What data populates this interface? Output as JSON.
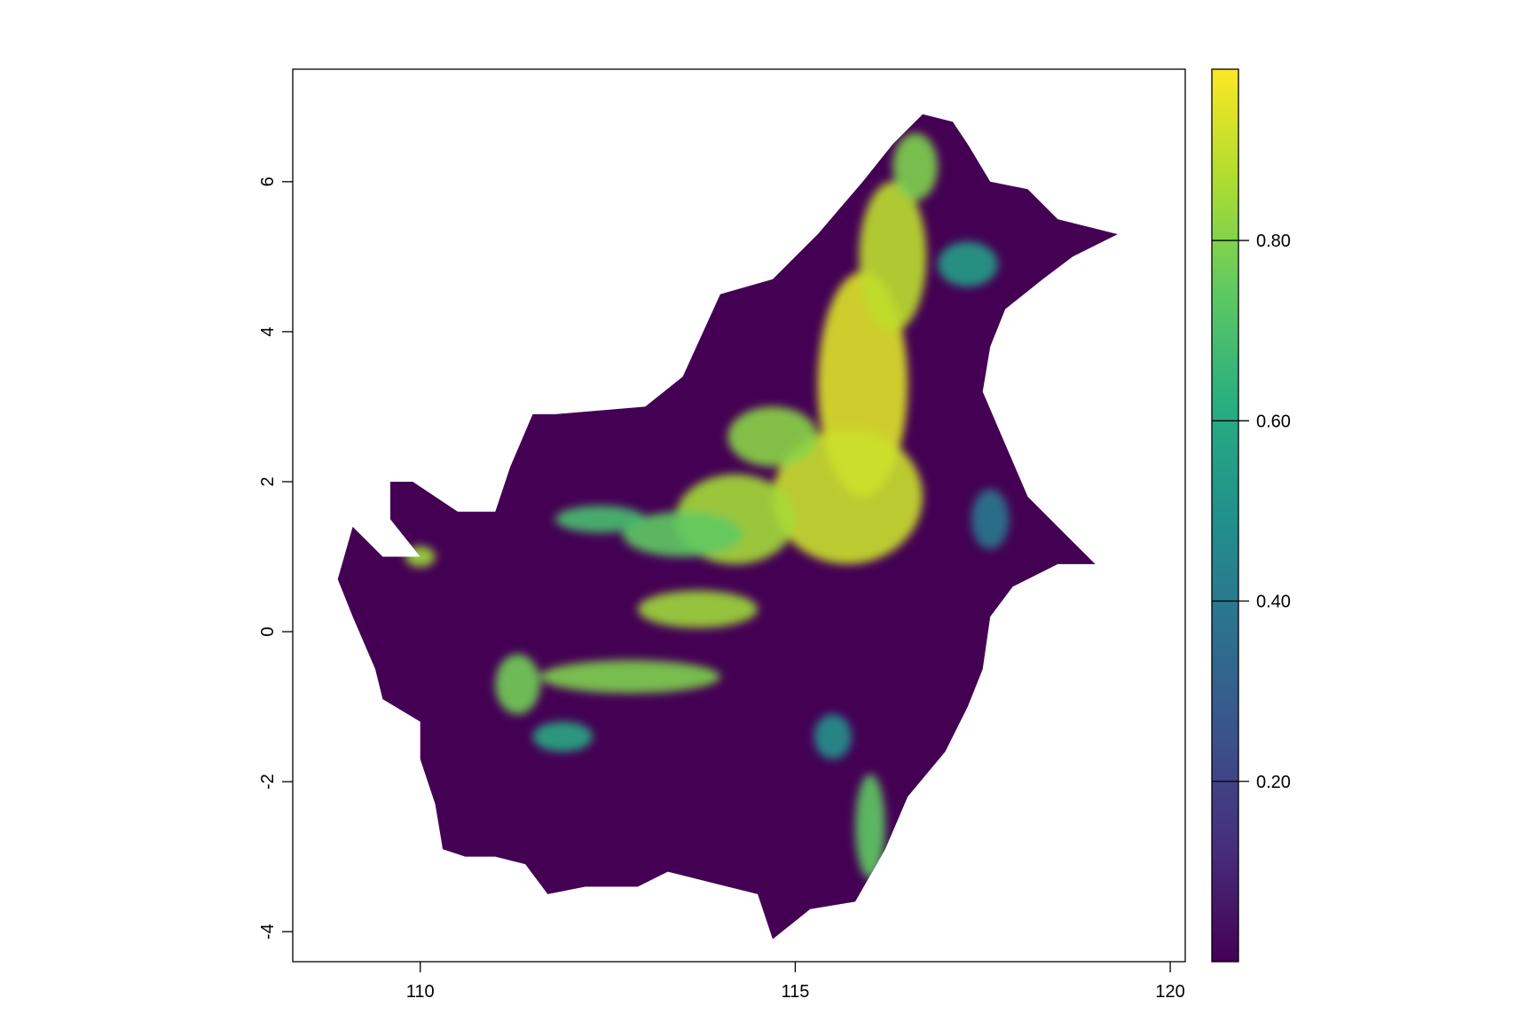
{
  "chart_data": {
    "type": "heatmap",
    "title": "",
    "xlabel": "",
    "ylabel": "",
    "xlim": [
      108.3,
      120.2
    ],
    "ylim": [
      -4.4,
      7.5
    ],
    "x_ticks": [
      {
        "value": 110,
        "label": "110"
      },
      {
        "value": 115,
        "label": "115"
      },
      {
        "value": 120,
        "label": "120"
      }
    ],
    "y_ticks": [
      {
        "value": -4,
        "label": "-4"
      },
      {
        "value": -2,
        "label": "-2"
      },
      {
        "value": 0,
        "label": "0"
      },
      {
        "value": 2,
        "label": "2"
      },
      {
        "value": 4,
        "label": "4"
      },
      {
        "value": 6,
        "label": "6"
      }
    ],
    "colorbar": {
      "min": 0,
      "max": 0.99,
      "ticks": [
        {
          "value": 0.2,
          "label": "0.20"
        },
        {
          "value": 0.4,
          "label": "0.40"
        },
        {
          "value": 0.6,
          "label": "0.60"
        },
        {
          "value": 0.8,
          "label": "0.80"
        }
      ],
      "palette": [
        "#440154",
        "#472d7b",
        "#3b528b",
        "#2c728e",
        "#21918c",
        "#28ae80",
        "#5ec962",
        "#addc30",
        "#fde725"
      ]
    },
    "island_outline": [
      [
        110.0,
        1.0
      ],
      [
        109.6,
        1.5
      ],
      [
        109.6,
        2.0
      ],
      [
        109.9,
        2.0
      ],
      [
        110.5,
        1.6
      ],
      [
        111.0,
        1.6
      ],
      [
        111.2,
        2.2
      ],
      [
        111.5,
        2.9
      ],
      [
        111.8,
        2.9
      ],
      [
        113.0,
        3.0
      ],
      [
        113.5,
        3.4
      ],
      [
        114.0,
        4.5
      ],
      [
        114.7,
        4.7
      ],
      [
        115.3,
        5.3
      ],
      [
        115.9,
        6.0
      ],
      [
        116.3,
        6.5
      ],
      [
        116.7,
        6.9
      ],
      [
        117.1,
        6.8
      ],
      [
        117.3,
        6.5
      ],
      [
        117.6,
        6.0
      ],
      [
        118.1,
        5.9
      ],
      [
        118.5,
        5.5
      ],
      [
        119.3,
        5.3
      ],
      [
        118.7,
        5.0
      ],
      [
        118.3,
        4.7
      ],
      [
        117.8,
        4.3
      ],
      [
        117.6,
        3.8
      ],
      [
        117.5,
        3.2
      ],
      [
        117.8,
        2.5
      ],
      [
        118.1,
        1.8
      ],
      [
        118.7,
        1.2
      ],
      [
        119.0,
        0.9
      ],
      [
        118.5,
        0.9
      ],
      [
        117.9,
        0.6
      ],
      [
        117.6,
        0.2
      ],
      [
        117.5,
        -0.5
      ],
      [
        117.3,
        -1.0
      ],
      [
        117.0,
        -1.6
      ],
      [
        116.5,
        -2.2
      ],
      [
        116.2,
        -2.9
      ],
      [
        115.8,
        -3.6
      ],
      [
        115.2,
        -3.7
      ],
      [
        114.7,
        -4.1
      ],
      [
        114.5,
        -3.5
      ],
      [
        114.1,
        -3.4
      ],
      [
        113.3,
        -3.2
      ],
      [
        112.9,
        -3.4
      ],
      [
        112.2,
        -3.4
      ],
      [
        111.7,
        -3.5
      ],
      [
        111.4,
        -3.1
      ],
      [
        111.0,
        -3.0
      ],
      [
        110.6,
        -3.0
      ],
      [
        110.3,
        -2.9
      ],
      [
        110.2,
        -2.3
      ],
      [
        110.0,
        -1.7
      ],
      [
        110.0,
        -1.2
      ],
      [
        109.5,
        -0.9
      ],
      [
        109.4,
        -0.5
      ],
      [
        109.1,
        0.2
      ],
      [
        108.9,
        0.7
      ],
      [
        109.1,
        1.4
      ],
      [
        109.5,
        1.0
      ]
    ],
    "suitability_zones": [
      {
        "lon": 115.9,
        "lat": 3.3,
        "rx": 0.6,
        "ry": 1.5,
        "value": 0.95
      },
      {
        "lon": 116.3,
        "lat": 5.0,
        "rx": 0.45,
        "ry": 1.0,
        "value": 0.9
      },
      {
        "lon": 116.6,
        "lat": 6.2,
        "rx": 0.3,
        "ry": 0.45,
        "value": 0.8
      },
      {
        "lon": 115.7,
        "lat": 1.8,
        "rx": 1.0,
        "ry": 0.9,
        "value": 0.92
      },
      {
        "lon": 114.7,
        "lat": 2.6,
        "rx": 0.6,
        "ry": 0.4,
        "value": 0.82
      },
      {
        "lon": 114.2,
        "lat": 1.5,
        "rx": 0.8,
        "ry": 0.6,
        "value": 0.86
      },
      {
        "lon": 113.5,
        "lat": 1.3,
        "rx": 0.8,
        "ry": 0.3,
        "value": 0.75
      },
      {
        "lon": 112.4,
        "lat": 1.5,
        "rx": 0.6,
        "ry": 0.18,
        "value": 0.7
      },
      {
        "lon": 113.7,
        "lat": 0.3,
        "rx": 0.8,
        "ry": 0.25,
        "value": 0.85
      },
      {
        "lon": 112.8,
        "lat": -0.6,
        "rx": 1.2,
        "ry": 0.22,
        "value": 0.8
      },
      {
        "lon": 111.3,
        "lat": -0.7,
        "rx": 0.3,
        "ry": 0.4,
        "value": 0.78
      },
      {
        "lon": 110.0,
        "lat": 1.0,
        "rx": 0.2,
        "ry": 0.14,
        "value": 0.85
      },
      {
        "lon": 117.3,
        "lat": 4.9,
        "rx": 0.4,
        "ry": 0.3,
        "value": 0.55
      },
      {
        "lon": 117.6,
        "lat": 1.5,
        "rx": 0.25,
        "ry": 0.4,
        "value": 0.4
      },
      {
        "lon": 116.0,
        "lat": -2.6,
        "rx": 0.2,
        "ry": 0.7,
        "value": 0.75
      },
      {
        "lon": 115.5,
        "lat": -1.4,
        "rx": 0.25,
        "ry": 0.3,
        "value": 0.5
      },
      {
        "lon": 111.9,
        "lat": -1.4,
        "rx": 0.4,
        "ry": 0.2,
        "value": 0.6
      }
    ]
  }
}
